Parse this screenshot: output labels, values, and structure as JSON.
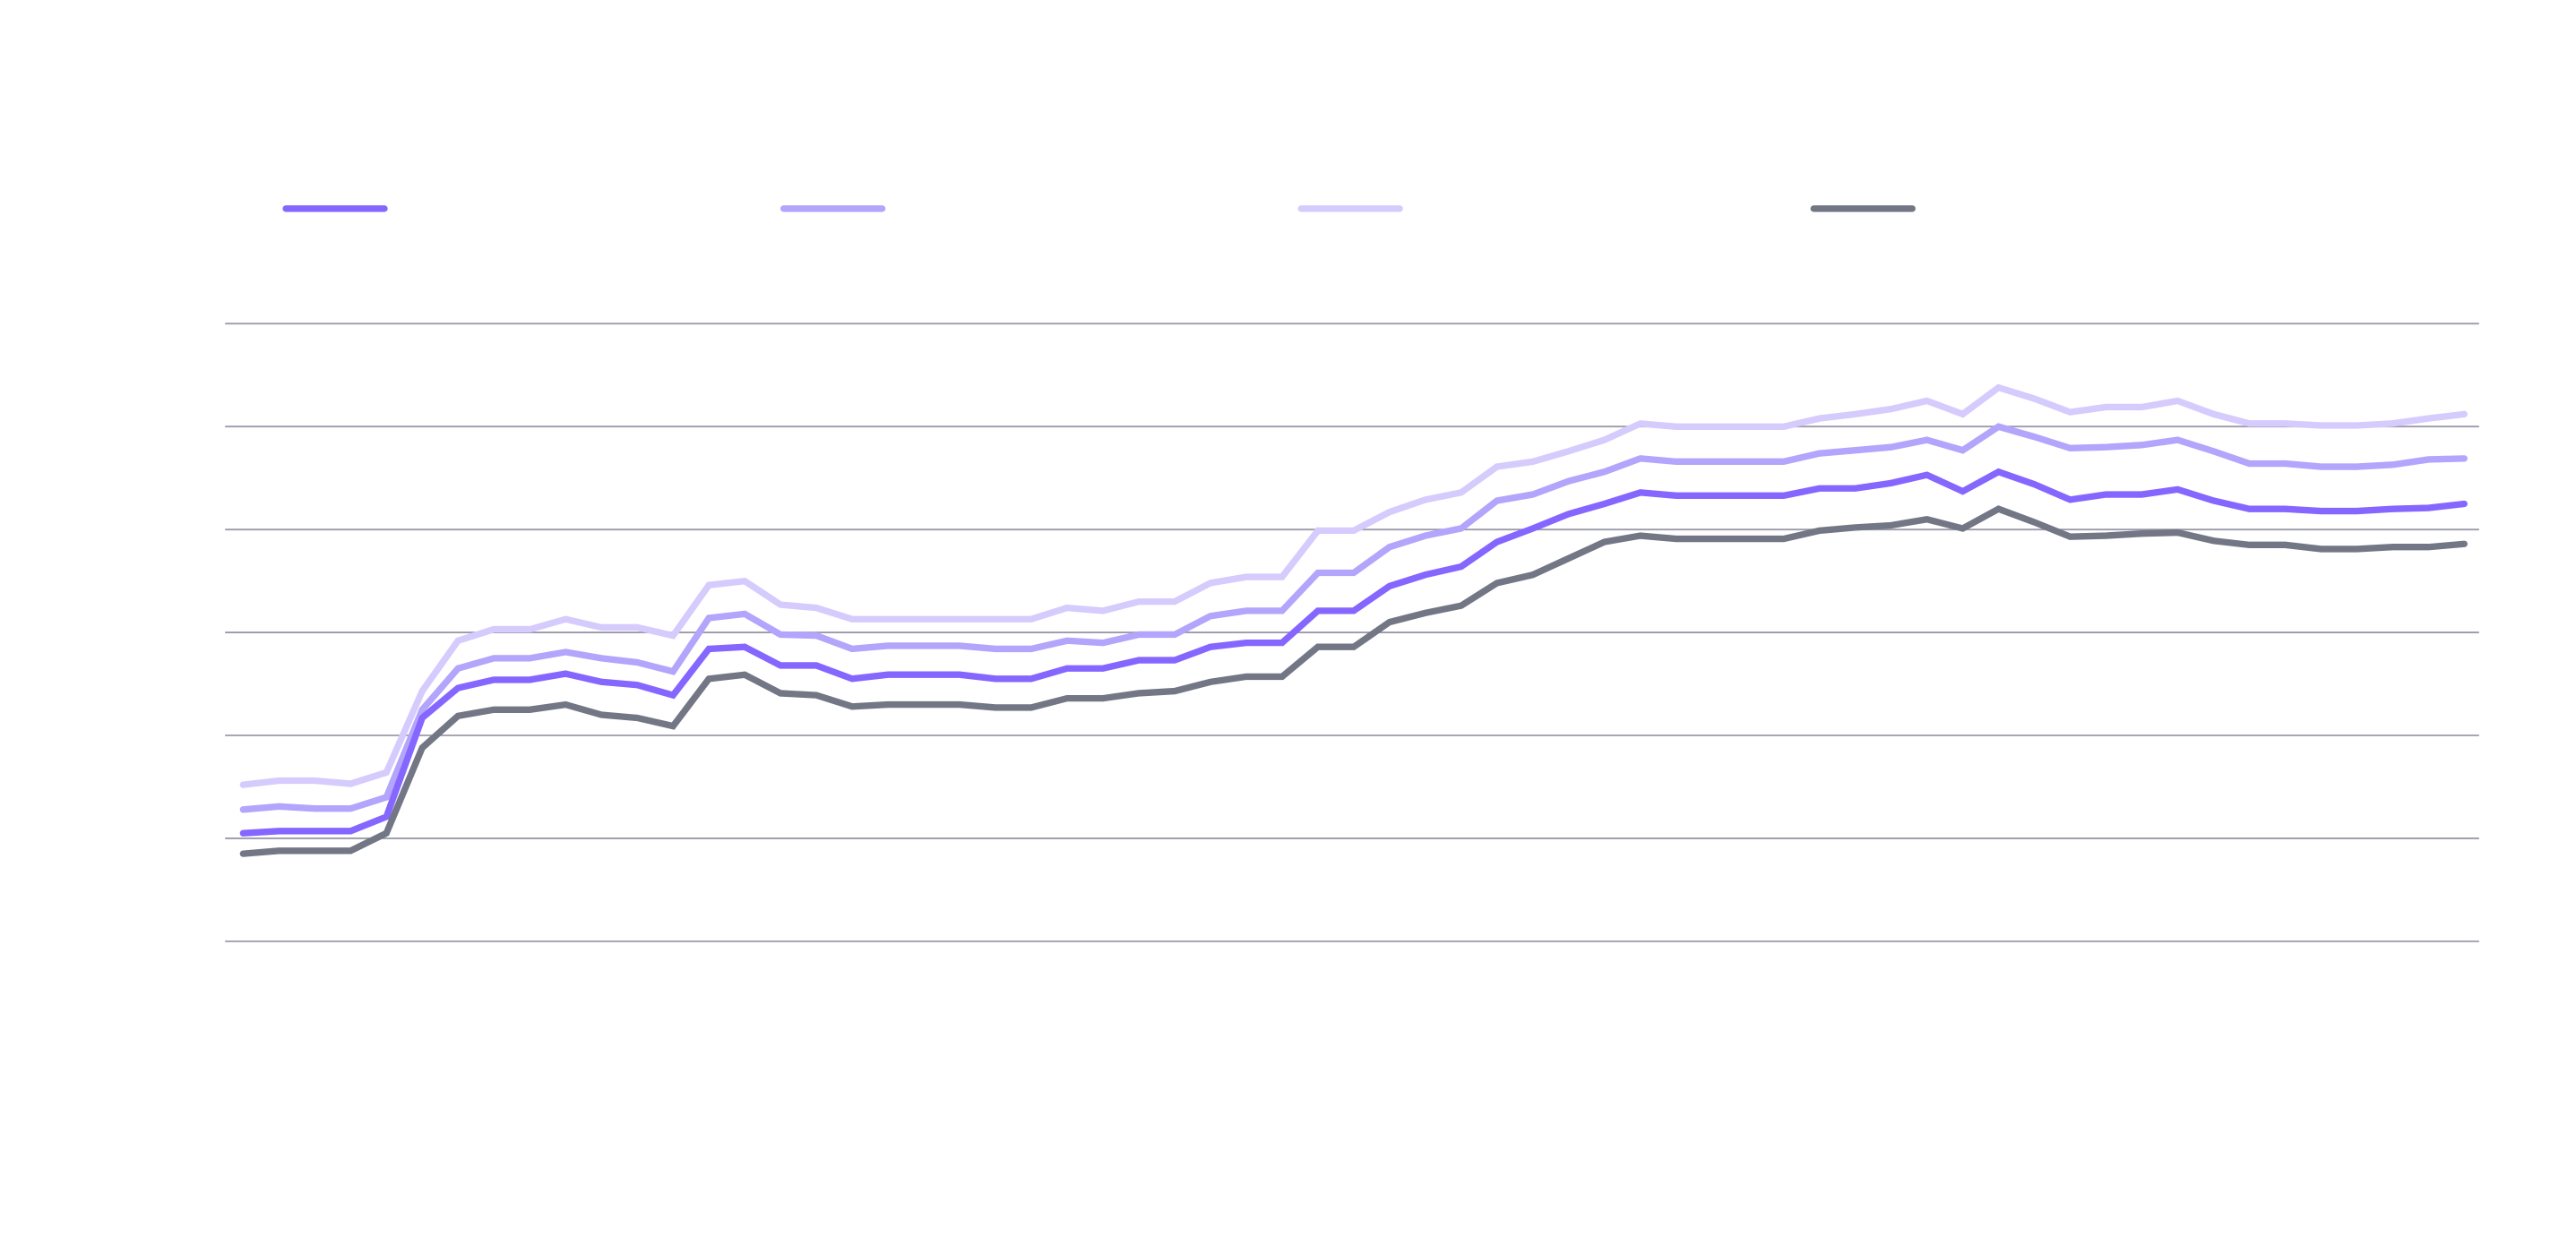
{
  "chart_data": {
    "type": "line",
    "title": "",
    "xlabel": "",
    "ylabel": "",
    "ylim": [
      0,
      60
    ],
    "grid": true,
    "gridlines_y": [
      0,
      10,
      20,
      30,
      40,
      50,
      60
    ],
    "legend_placement": "top",
    "series": [
      {
        "color": "#8566ff",
        "values": [
          10.5,
          10.7,
          10.7,
          10.7,
          12.1,
          21.7,
          24.6,
          25.4,
          25.4,
          26.0,
          25.2,
          24.9,
          23.9,
          28.4,
          28.6,
          26.8,
          26.8,
          25.5,
          25.9,
          25.9,
          25.9,
          25.5,
          25.5,
          26.5,
          26.5,
          27.3,
          27.3,
          28.6,
          29.0,
          29.0,
          32.1,
          32.1,
          34.5,
          35.6,
          36.4,
          38.8,
          40.1,
          41.5,
          42.5,
          43.6,
          43.3,
          43.3,
          43.3,
          43.3,
          44.0,
          44.0,
          44.5,
          45.3,
          43.7,
          45.6,
          44.4,
          42.9,
          43.4,
          43.4,
          43.9,
          42.8,
          42.0,
          42.0,
          41.8,
          41.8,
          42.0,
          42.1,
          42.5
        ]
      },
      {
        "color": "#b3a4fc",
        "values": [
          12.8,
          13.1,
          12.9,
          12.9,
          14.0,
          22.5,
          26.5,
          27.5,
          27.5,
          28.1,
          27.5,
          27.1,
          26.2,
          31.4,
          31.8,
          29.8,
          29.7,
          28.4,
          28.7,
          28.7,
          28.7,
          28.4,
          28.4,
          29.2,
          29.0,
          29.8,
          29.8,
          31.6,
          32.1,
          32.1,
          35.8,
          35.8,
          38.3,
          39.4,
          40.1,
          42.8,
          43.4,
          44.7,
          45.6,
          46.9,
          46.6,
          46.6,
          46.6,
          46.6,
          47.4,
          47.7,
          48.0,
          48.7,
          47.7,
          50.0,
          49.0,
          47.9,
          48.0,
          48.2,
          48.7,
          47.6,
          46.4,
          46.4,
          46.1,
          46.1,
          46.3,
          46.8,
          46.9
        ]
      },
      {
        "color": "#d5cbfd",
        "values": [
          15.2,
          15.6,
          15.6,
          15.3,
          16.4,
          24.3,
          29.2,
          30.3,
          30.3,
          31.3,
          30.5,
          30.5,
          29.7,
          34.6,
          35.0,
          32.7,
          32.4,
          31.3,
          31.3,
          31.3,
          31.3,
          31.3,
          31.3,
          32.4,
          32.1,
          33.0,
          33.0,
          34.8,
          35.4,
          35.4,
          39.9,
          39.9,
          41.7,
          42.9,
          43.6,
          46.1,
          46.6,
          47.6,
          48.7,
          50.3,
          50.0,
          50.0,
          50.0,
          50.0,
          50.8,
          51.2,
          51.7,
          52.5,
          51.2,
          53.8,
          52.7,
          51.4,
          51.9,
          51.9,
          52.5,
          51.2,
          50.3,
          50.3,
          50.1,
          50.1,
          50.3,
          50.8,
          51.2
        ]
      },
      {
        "color": "#737785",
        "values": [
          8.5,
          8.8,
          8.8,
          8.8,
          10.5,
          18.8,
          21.9,
          22.5,
          22.5,
          23.0,
          22.0,
          21.7,
          20.9,
          25.5,
          25.9,
          24.1,
          23.9,
          22.8,
          23.0,
          23.0,
          23.0,
          22.7,
          22.7,
          23.6,
          23.6,
          24.1,
          24.3,
          25.2,
          25.7,
          25.7,
          28.6,
          28.6,
          31.0,
          31.9,
          32.6,
          34.8,
          35.6,
          37.2,
          38.8,
          39.4,
          39.1,
          39.1,
          39.1,
          39.1,
          39.9,
          40.2,
          40.4,
          41.0,
          40.1,
          42.0,
          40.7,
          39.3,
          39.4,
          39.6,
          39.7,
          38.9,
          38.5,
          38.5,
          38.1,
          38.1,
          38.3,
          38.3,
          38.6
        ]
      }
    ]
  }
}
